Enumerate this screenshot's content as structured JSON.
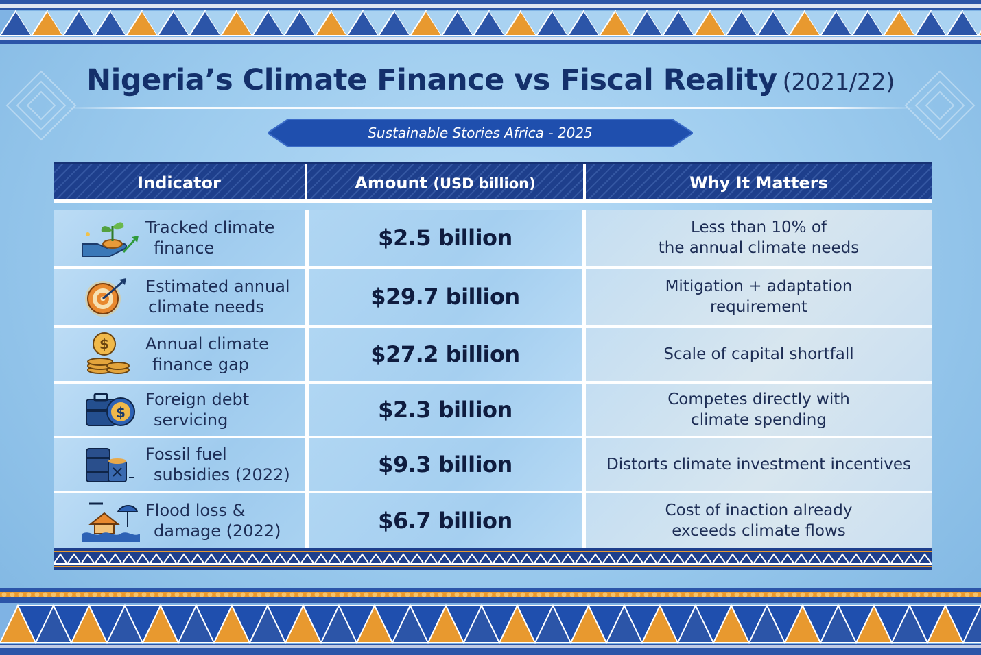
{
  "header": {
    "title": "Nigeria’s Climate Finance vs Fiscal Reality",
    "title_year": "(2021/22)",
    "ribbon": "Sustainable Stories Africa - 2025"
  },
  "table": {
    "columns": [
      "Indicator",
      "Amount",
      "(USD billion)",
      "Why It Matters"
    ],
    "rows": [
      {
        "icon": "plant-hand-icon",
        "indicator": [
          "Tracked climate",
          "finance"
        ],
        "amount": "$2.5 billion",
        "why": [
          "Less than 10% of",
          "the annual climate needs"
        ]
      },
      {
        "icon": "target-icon",
        "indicator": [
          "Estimated annual",
          "climate needs"
        ],
        "amount": "$29.7 billion",
        "why": [
          "Mitigation + adaptation",
          "requirement"
        ]
      },
      {
        "icon": "coin-stack-icon",
        "indicator": [
          "Annual climate",
          "finance gap"
        ],
        "amount": "$27.2 billion",
        "why": [
          "Scale of capital shortfall"
        ]
      },
      {
        "icon": "debt-briefcase-icon",
        "indicator": [
          "Foreign debt",
          "servicing"
        ],
        "amount": "$2.3 billion",
        "why": [
          "Competes directly with",
          "climate spending"
        ]
      },
      {
        "icon": "oil-barrel-icon",
        "indicator": [
          "Fossil fuel",
          "subsidies (2022)"
        ],
        "amount": "$9.3 billion",
        "why": [
          "Distorts climate investment incentives"
        ]
      },
      {
        "icon": "flood-house-icon",
        "indicator": [
          "Flood loss &",
          "damage (2022)"
        ],
        "amount": "$6.7 billion",
        "why": [
          "Cost of inaction already",
          "exceeds climate flows"
        ]
      }
    ]
  },
  "colors": {
    "navy": "#1e3f8c",
    "title": "#14306b",
    "accent_orange": "#e8992f",
    "background": "#9fcdef"
  }
}
